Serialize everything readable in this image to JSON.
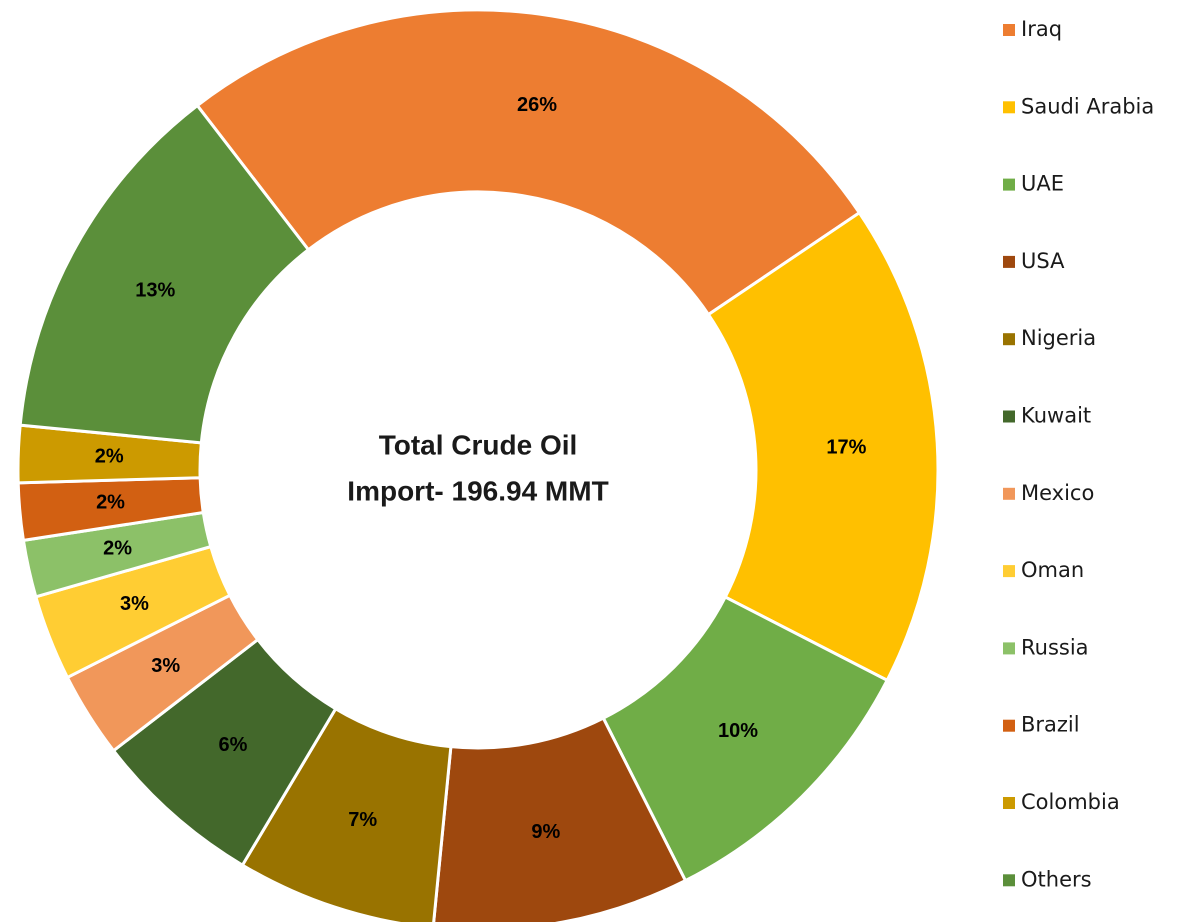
{
  "chart_data": {
    "type": "donut",
    "center_text": [
      "Total Crude Oil",
      "Import- 196.94 MMT"
    ],
    "categories": [
      "Iraq",
      "Saudi Arabia",
      "UAE",
      "USA",
      "Nigeria",
      "Kuwait",
      "Mexico",
      "Oman",
      "Russia",
      "Brazil",
      "Colombia",
      "Others"
    ],
    "values": [
      26,
      17,
      10,
      9,
      7,
      6,
      3,
      3,
      2,
      2,
      2,
      13
    ],
    "value_labels": [
      "26%",
      "17%",
      "10%",
      "9%",
      "7%",
      "6%",
      "3%",
      "3%",
      "2%",
      "2%",
      "2%",
      "13%"
    ],
    "colors": [
      "#ED7D31",
      "#FFC000",
      "#70AD47",
      "#9E480E",
      "#997300",
      "#43682B",
      "#F1975A",
      "#FFCD33",
      "#8CC168",
      "#D26012",
      "#CC9A00",
      "#5B8F3A"
    ],
    "legend": "right"
  }
}
